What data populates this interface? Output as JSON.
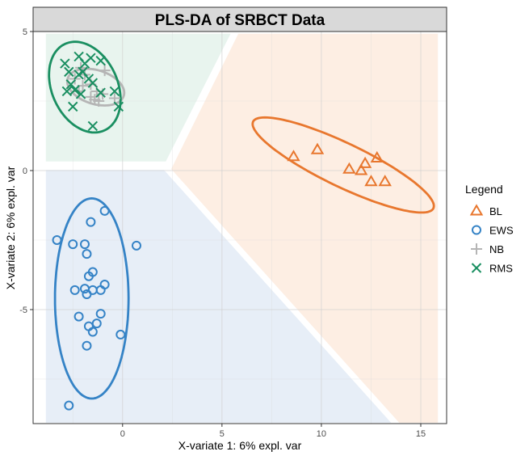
{
  "chart_data": {
    "type": "scatter",
    "title": "PLS-DA of SRBCT Data",
    "xlabel": "X-variate 1: 6% expl. var",
    "ylabel": "X-variate 2: 6% expl. var",
    "xlim": [
      -4.5,
      16.3
    ],
    "ylim": [
      -9.1,
      5.0
    ],
    "xticks": [
      0,
      5,
      10,
      15
    ],
    "yticks": [
      5,
      0,
      -5
    ],
    "grid": true,
    "legend_title": "Legend",
    "legend_position": "right",
    "series": [
      {
        "name": "BL",
        "color": "#e8772e",
        "marker": "triangle",
        "points": [
          [
            8.6,
            0.5
          ],
          [
            9.8,
            0.75
          ],
          [
            11.4,
            0.05
          ],
          [
            12.0,
            0.0
          ],
          [
            12.2,
            0.25
          ],
          [
            12.5,
            -0.4
          ],
          [
            12.8,
            0.45
          ],
          [
            13.2,
            -0.4
          ]
        ]
      },
      {
        "name": "EWS",
        "color": "#3583c6",
        "marker": "circle",
        "points": [
          [
            -3.3,
            -2.5
          ],
          [
            -2.5,
            -2.65
          ],
          [
            -1.9,
            -2.65
          ],
          [
            -1.8,
            -3.0
          ],
          [
            -0.9,
            -1.45
          ],
          [
            -1.6,
            -1.85
          ],
          [
            -1.5,
            -3.65
          ],
          [
            -1.7,
            -3.8
          ],
          [
            -2.4,
            -4.3
          ],
          [
            -1.9,
            -4.25
          ],
          [
            -1.8,
            -4.45
          ],
          [
            -1.5,
            -4.3
          ],
          [
            -1.1,
            -4.3
          ],
          [
            -0.9,
            -4.1
          ],
          [
            -2.2,
            -5.25
          ],
          [
            -1.1,
            -5.15
          ],
          [
            -1.3,
            -5.5
          ],
          [
            -1.7,
            -5.6
          ],
          [
            -1.5,
            -5.8
          ],
          [
            -0.1,
            -5.9
          ],
          [
            -1.8,
            -6.3
          ],
          [
            -2.7,
            -8.45
          ],
          [
            0.7,
            -2.7
          ]
        ]
      },
      {
        "name": "NB",
        "color": "#b5b5b5",
        "marker": "plus",
        "points": [
          [
            -2.1,
            3.7
          ],
          [
            -1.9,
            3.45
          ],
          [
            -1.6,
            3.1
          ],
          [
            -2.2,
            2.85
          ],
          [
            -1.3,
            2.85
          ],
          [
            -1.0,
            2.75
          ],
          [
            -1.6,
            2.65
          ],
          [
            -1.2,
            2.5
          ],
          [
            -0.9,
            3.6
          ],
          [
            -2.4,
            3.3
          ],
          [
            -1.4,
            2.55
          ],
          [
            -0.4,
            2.6
          ],
          [
            -2.0,
            3.05
          ]
        ]
      },
      {
        "name": "RMS",
        "color": "#1a8f61",
        "marker": "cross",
        "points": [
          [
            -2.2,
            4.1
          ],
          [
            -2.9,
            3.85
          ],
          [
            -1.9,
            3.85
          ],
          [
            -1.1,
            3.95
          ],
          [
            -1.6,
            4.05
          ],
          [
            -2.7,
            3.55
          ],
          [
            -2.0,
            3.55
          ],
          [
            -2.2,
            3.45
          ],
          [
            -1.7,
            3.3
          ],
          [
            -2.6,
            3.1
          ],
          [
            -1.5,
            3.15
          ],
          [
            -2.8,
            2.85
          ],
          [
            -2.4,
            2.9
          ],
          [
            -2.1,
            2.75
          ],
          [
            -1.1,
            2.8
          ],
          [
            -0.4,
            2.85
          ],
          [
            -2.5,
            2.3
          ],
          [
            -0.2,
            2.3
          ],
          [
            -1.5,
            1.6
          ]
        ]
      }
    ],
    "ellipses": [
      {
        "name": "BL",
        "color": "#e8772e",
        "center": [
          11.1,
          0.2
        ],
        "semi_axes": [
          4.8,
          0.82
        ],
        "angle_deg": -18.5
      },
      {
        "name": "EWS",
        "color": "#3583c6",
        "center": [
          -1.55,
          -4.6
        ],
        "semi_axes": [
          1.85,
          3.6
        ],
        "angle_deg": 0
      },
      {
        "name": "NB",
        "color": "#b5b5b5",
        "center": [
          -1.35,
          3.0
        ],
        "semi_axes": [
          1.45,
          0.62
        ],
        "angle_deg": -10
      },
      {
        "name": "RMS",
        "color": "#1a8f61",
        "center": [
          -1.9,
          3.0
        ],
        "semi_axes": [
          1.95,
          1.45
        ],
        "angle_deg": -35
      }
    ],
    "regions": [
      {
        "name": "RMS",
        "color": "#e8f4ee",
        "polygon": [
          [
            -3.9,
            4.95
          ],
          [
            5.5,
            4.95
          ],
          [
            2.2,
            0.3
          ],
          [
            -3.9,
            0.3
          ]
        ]
      },
      {
        "name": "BL",
        "color": "#fdeee3",
        "polygon": [
          [
            5.8,
            4.95
          ],
          [
            15.9,
            4.95
          ],
          [
            15.9,
            -9.1
          ],
          [
            13.9,
            -9.1
          ],
          [
            2.4,
            0.05
          ]
        ]
      },
      {
        "name": "EWS",
        "color": "#e7eef7",
        "polygon": [
          [
            -3.9,
            0.05
          ],
          [
            2.1,
            0.05
          ],
          [
            13.6,
            -9.1
          ],
          [
            -3.9,
            -9.1
          ]
        ]
      }
    ]
  }
}
